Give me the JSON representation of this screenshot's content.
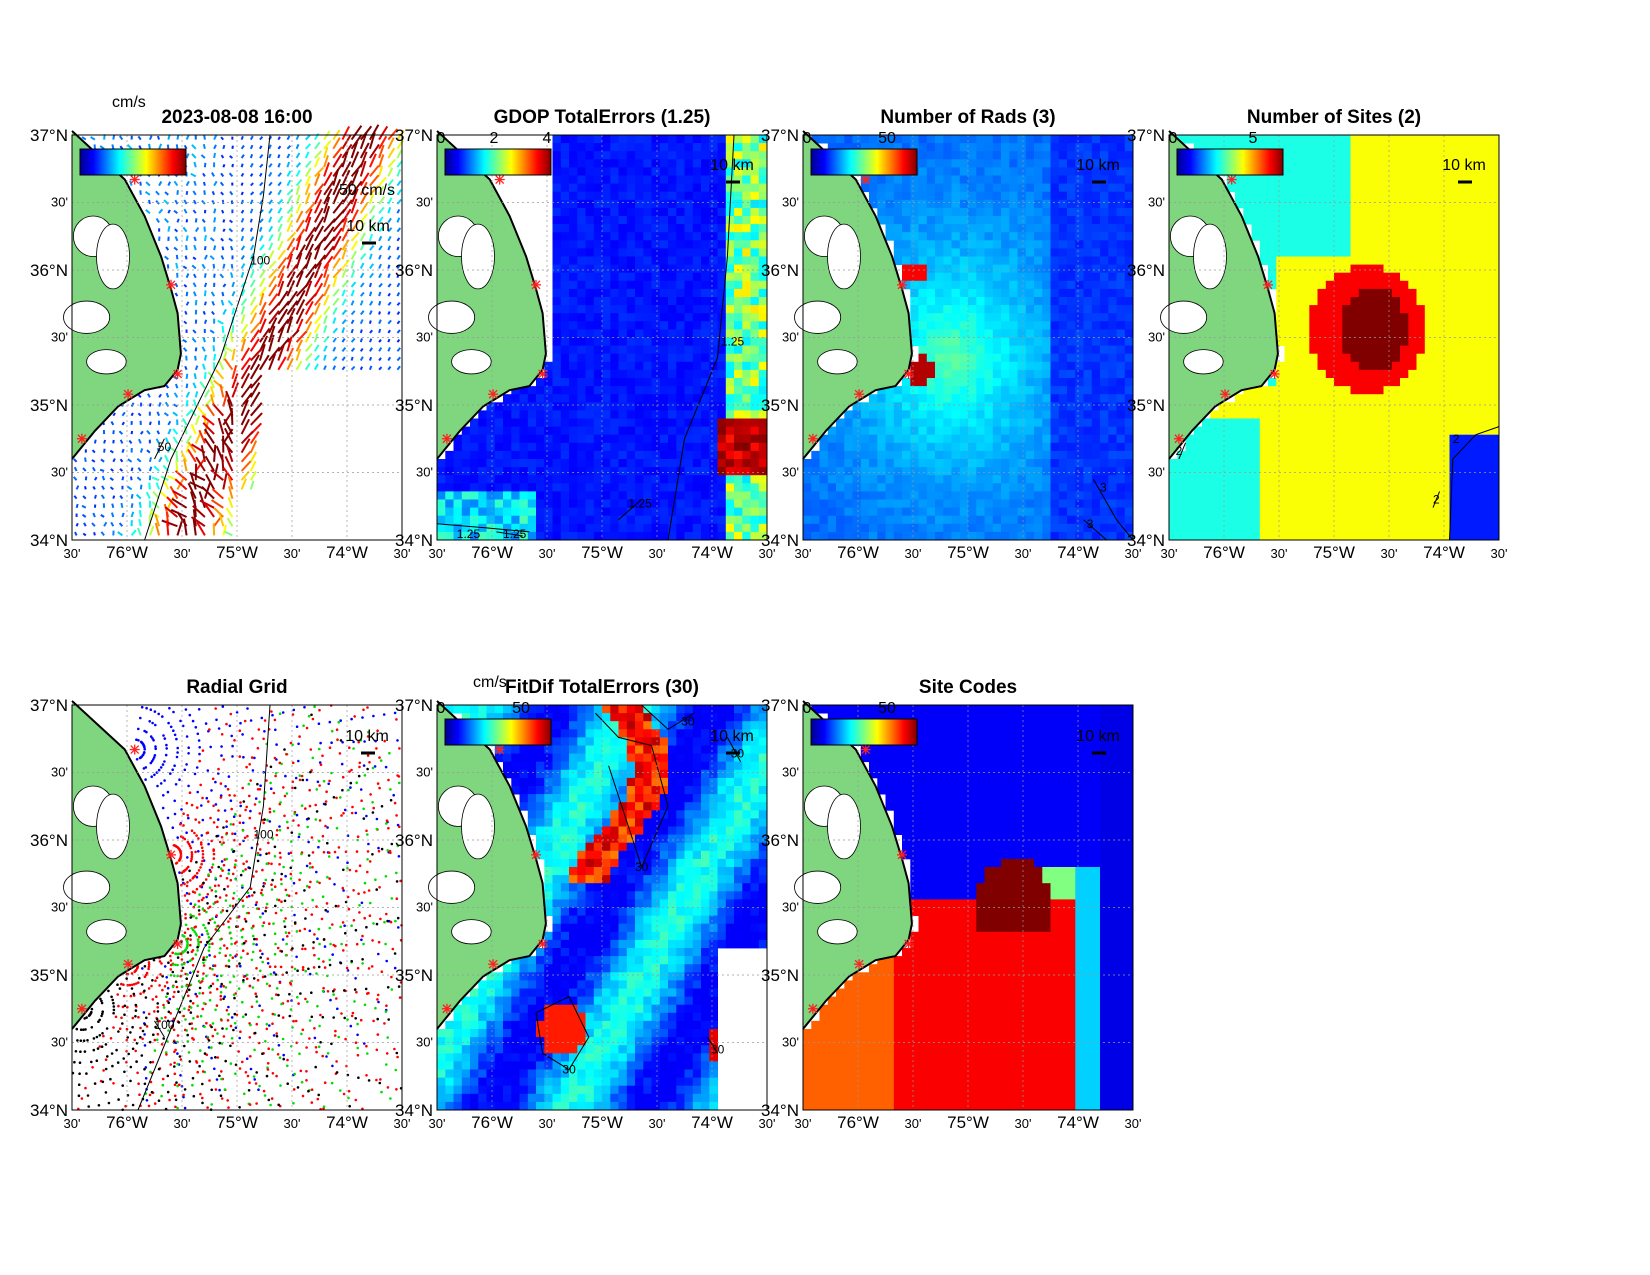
{
  "figure": {
    "timestamp": "2023-08-08 16:00",
    "units_label": "cm/s",
    "vector_scale_label": "50 cm/s",
    "scale_bar_label": "10 km",
    "lat_ticks": [
      "37°N",
      "30'",
      "36°N",
      "30'",
      "35°N",
      "30'",
      "34°N"
    ],
    "lon_ticks": [
      "30'",
      "76°W",
      "30'",
      "75°W",
      "30'",
      "74°W",
      "30'"
    ],
    "colors": {
      "land": "#7fd67f",
      "coast": "#000000",
      "site_marker": "#ff2020"
    },
    "panels": [
      {
        "id": "currents",
        "title": "",
        "colorbar": {
          "min_label": "",
          "max_label": ""
        },
        "contour_labels": [
          "100",
          "50"
        ]
      },
      {
        "id": "gdop",
        "title": "GDOP TotalErrors (1.25)",
        "colorbar": {
          "tick_labels": [
            "0",
            "2",
            "4"
          ]
        },
        "contour_labels": [
          "1.25",
          "1.25",
          "1.25",
          "1.25"
        ]
      },
      {
        "id": "rads",
        "title": "Number of Rads (3)",
        "colorbar": {
          "tick_labels": [
            "0",
            "50"
          ]
        },
        "contour_labels": [
          "3",
          "3"
        ]
      },
      {
        "id": "sites",
        "title": "Number of Sites (2)",
        "colorbar": {
          "tick_labels": [
            "0",
            "5"
          ]
        },
        "contour_labels": [
          "2",
          "2",
          "2"
        ]
      },
      {
        "id": "radial",
        "title": "Radial Grid",
        "contour_labels": [
          "100",
          "100"
        ]
      },
      {
        "id": "fitdif",
        "title": "FitDif TotalErrors (30)",
        "units_label": "cm/s",
        "colorbar": {
          "tick_labels": [
            "0",
            "50"
          ]
        },
        "contour_labels": [
          "30",
          "30",
          "30",
          "30",
          "30"
        ]
      },
      {
        "id": "sitecodes",
        "title": "Site Codes",
        "colorbar": {
          "tick_labels": [
            "0",
            "50"
          ]
        }
      }
    ]
  }
}
